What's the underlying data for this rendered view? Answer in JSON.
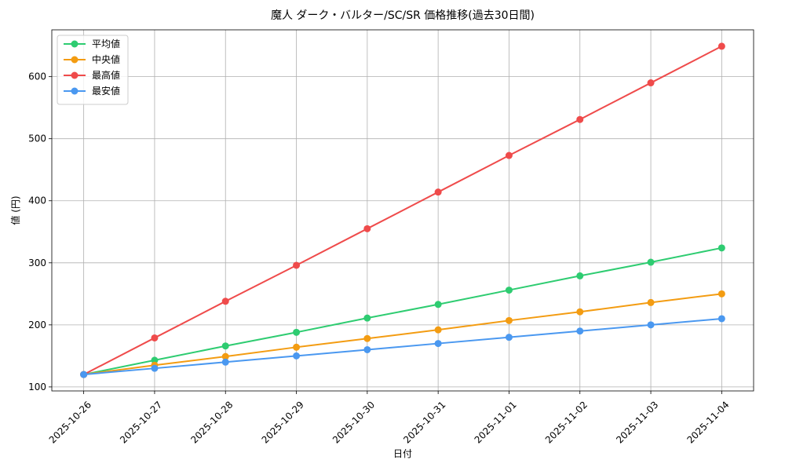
{
  "chart_data": {
    "type": "line",
    "title": "魔人 ダーク・バルター/SC/SR 価格推移(過去30日間)",
    "xlabel": "日付",
    "ylabel": "値 (円)",
    "categories": [
      "2025-10-26",
      "2025-10-27",
      "2025-10-28",
      "2025-10-29",
      "2025-10-30",
      "2025-10-31",
      "2025-11-01",
      "2025-11-02",
      "2025-11-03",
      "2025-11-04"
    ],
    "series": [
      {
        "name": "平均値",
        "color": "#2ecc71",
        "values": [
          120,
          143,
          166,
          188,
          211,
          233,
          256,
          279,
          301,
          324
        ]
      },
      {
        "name": "中央値",
        "color": "#f39c12",
        "values": [
          120,
          135,
          149,
          164,
          178,
          192,
          207,
          221,
          236,
          250
        ]
      },
      {
        "name": "最高値",
        "color": "#ef4b4b",
        "values": [
          120,
          179,
          238,
          296,
          355,
          414,
          473,
          531,
          590,
          649
        ]
      },
      {
        "name": "最安値",
        "color": "#4a98f0",
        "values": [
          120,
          130,
          140,
          150,
          160,
          170,
          180,
          190,
          200,
          210
        ]
      }
    ],
    "ylim": [
      93.55,
      675.45
    ],
    "yticks": [
      100,
      200,
      300,
      400,
      500,
      600
    ],
    "grid": true,
    "legend": "upper left"
  }
}
